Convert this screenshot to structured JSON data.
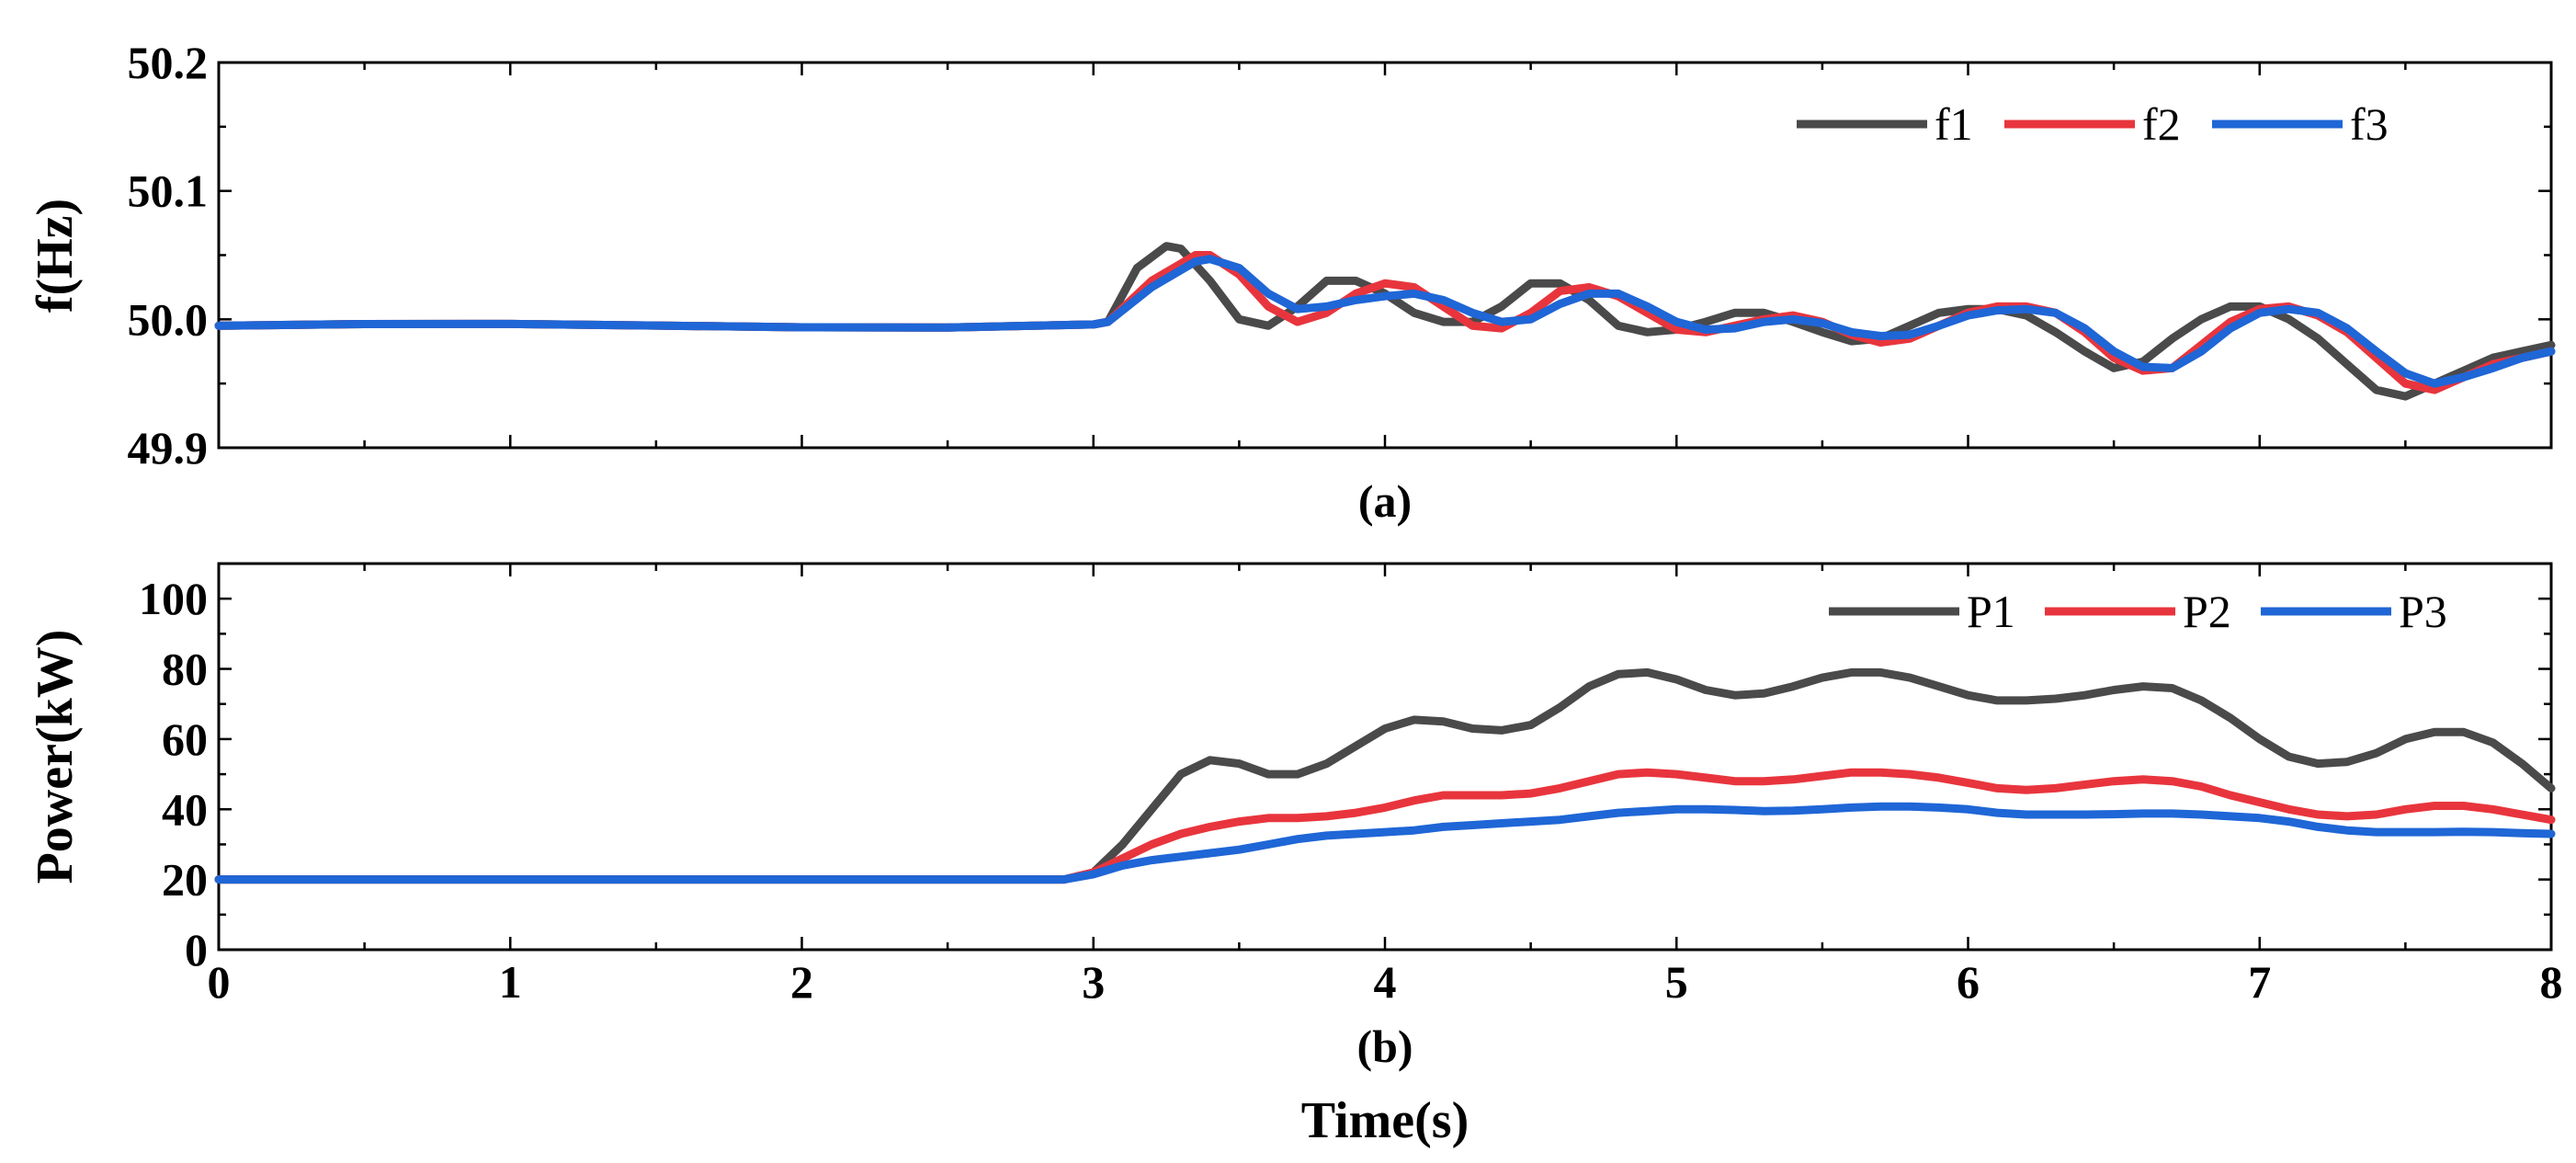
{
  "chart_data": [
    {
      "type": "line",
      "panel_label": "(a)",
      "title": "",
      "xlabel": "",
      "ylabel": "f(Hz)",
      "xlim": [
        0,
        8
      ],
      "ylim": [
        49.9,
        50.2
      ],
      "yticks": [
        "49.9",
        "50.0",
        "50.1",
        "50.2"
      ],
      "legend_position": "top-right",
      "series": [
        {
          "name": "f1",
          "color": "#4a4a4a",
          "x": [
            0,
            0.5,
            1,
            1.5,
            2,
            2.5,
            3,
            3.05,
            3.15,
            3.25,
            3.3,
            3.4,
            3.5,
            3.6,
            3.7,
            3.8,
            3.9,
            4.0,
            4.1,
            4.2,
            4.3,
            4.4,
            4.5,
            4.6,
            4.7,
            4.8,
            4.9,
            5.0,
            5.1,
            5.2,
            5.3,
            5.4,
            5.5,
            5.6,
            5.7,
            5.8,
            5.9,
            6.0,
            6.1,
            6.2,
            6.3,
            6.4,
            6.5,
            6.6,
            6.7,
            6.8,
            6.9,
            7.0,
            7.1,
            7.2,
            7.3,
            7.4,
            7.5,
            7.6,
            7.7,
            7.8,
            7.9,
            8.0
          ],
          "values": [
            49.995,
            49.995,
            49.995,
            49.995,
            49.995,
            49.995,
            49.996,
            49.998,
            50.04,
            50.057,
            50.055,
            50.03,
            50.0,
            49.995,
            50.01,
            50.03,
            50.03,
            50.02,
            50.005,
            49.998,
            49.998,
            50.01,
            50.028,
            50.028,
            50.015,
            49.995,
            49.99,
            49.992,
            49.998,
            50.005,
            50.005,
            49.998,
            49.99,
            49.983,
            49.985,
            49.995,
            50.005,
            50.008,
            50.008,
            50.003,
            49.99,
            49.975,
            49.962,
            49.967,
            49.985,
            50.0,
            50.01,
            50.01,
            50.0,
            49.985,
            49.965,
            49.945,
            49.94,
            49.95,
            49.96,
            49.97,
            49.975,
            49.98
          ]
        },
        {
          "name": "f2",
          "color": "#e8353d",
          "x": [
            0,
            0.5,
            1,
            1.5,
            2,
            2.5,
            3,
            3.05,
            3.2,
            3.35,
            3.4,
            3.5,
            3.6,
            3.7,
            3.8,
            3.9,
            4.0,
            4.1,
            4.2,
            4.3,
            4.4,
            4.5,
            4.6,
            4.7,
            4.8,
            4.9,
            5.0,
            5.1,
            5.2,
            5.3,
            5.4,
            5.5,
            5.6,
            5.7,
            5.8,
            5.9,
            6.0,
            6.1,
            6.2,
            6.3,
            6.4,
            6.5,
            6.6,
            6.7,
            6.8,
            6.9,
            7.0,
            7.1,
            7.2,
            7.3,
            7.4,
            7.5,
            7.6,
            7.7,
            7.8,
            7.9,
            8.0
          ],
          "values": [
            49.995,
            49.995,
            49.995,
            49.995,
            49.995,
            49.995,
            49.996,
            49.998,
            50.03,
            50.05,
            50.05,
            50.035,
            50.01,
            49.998,
            50.005,
            50.02,
            50.028,
            50.025,
            50.01,
            49.995,
            49.993,
            50.005,
            50.022,
            50.025,
            50.018,
            50.005,
            49.992,
            49.99,
            49.995,
            50.0,
            50.003,
            49.998,
            49.988,
            49.982,
            49.985,
            49.995,
            50.005,
            50.01,
            50.01,
            50.005,
            49.99,
            49.97,
            49.96,
            49.962,
            49.98,
            49.998,
            50.008,
            50.01,
            50.003,
            49.99,
            49.97,
            49.95,
            49.945,
            49.955,
            49.965,
            49.97,
            49.975
          ]
        },
        {
          "name": "f3",
          "color": "#1f66d6",
          "x": [
            0,
            0.5,
            1,
            1.5,
            2,
            2.5,
            3,
            3.05,
            3.2,
            3.35,
            3.4,
            3.5,
            3.6,
            3.7,
            3.8,
            3.9,
            4.0,
            4.1,
            4.2,
            4.3,
            4.4,
            4.5,
            4.6,
            4.7,
            4.8,
            4.9,
            5.0,
            5.1,
            5.2,
            5.3,
            5.4,
            5.5,
            5.6,
            5.7,
            5.8,
            5.9,
            6.0,
            6.1,
            6.2,
            6.3,
            6.4,
            6.5,
            6.6,
            6.7,
            6.8,
            6.9,
            7.0,
            7.1,
            7.2,
            7.3,
            7.4,
            7.5,
            7.6,
            7.7,
            7.8,
            7.9,
            8.0
          ],
          "values": [
            49.995,
            49.995,
            49.995,
            49.995,
            49.995,
            49.995,
            49.996,
            49.998,
            50.025,
            50.045,
            50.047,
            50.04,
            50.02,
            50.008,
            50.01,
            50.015,
            50.018,
            50.02,
            50.015,
            50.005,
            49.998,
            50.0,
            50.012,
            50.02,
            50.02,
            50.01,
            49.998,
            49.992,
            49.993,
            49.998,
            50.0,
            49.997,
            49.99,
            49.987,
            49.988,
            49.995,
            50.003,
            50.007,
            50.008,
            50.005,
            49.993,
            49.975,
            49.963,
            49.962,
            49.975,
            49.993,
            50.005,
            50.008,
            50.005,
            49.993,
            49.975,
            49.958,
            49.95,
            49.955,
            49.962,
            49.97,
            49.975
          ]
        }
      ]
    },
    {
      "type": "line",
      "panel_label": "(b)",
      "title": "",
      "xlabel": "Time(s)",
      "ylabel": "Power(kW)",
      "xlim": [
        0,
        8
      ],
      "ylim": [
        0,
        110
      ],
      "xticks": [
        "0",
        "1",
        "2",
        "3",
        "4",
        "5",
        "6",
        "7",
        "8"
      ],
      "yticks": [
        "0",
        "20",
        "40",
        "60",
        "80",
        "100"
      ],
      "legend_position": "top-right",
      "series": [
        {
          "name": "P1",
          "color": "#4a4a4a",
          "x": [
            0,
            0.5,
            1,
            1.5,
            2,
            2.5,
            2.9,
            3.0,
            3.1,
            3.2,
            3.3,
            3.4,
            3.5,
            3.6,
            3.7,
            3.8,
            3.9,
            4.0,
            4.1,
            4.2,
            4.3,
            4.4,
            4.5,
            4.6,
            4.7,
            4.8,
            4.9,
            5.0,
            5.1,
            5.2,
            5.3,
            5.4,
            5.5,
            5.6,
            5.7,
            5.8,
            5.9,
            6.0,
            6.1,
            6.2,
            6.3,
            6.4,
            6.5,
            6.6,
            6.7,
            6.8,
            6.9,
            7.0,
            7.1,
            7.2,
            7.3,
            7.4,
            7.5,
            7.6,
            7.7,
            7.8,
            7.9,
            8.0
          ],
          "values": [
            20,
            20,
            20,
            20,
            20,
            20,
            20,
            22,
            30,
            40,
            50,
            54,
            53,
            50,
            50,
            53,
            58,
            63,
            65.5,
            65,
            63,
            62.5,
            64,
            69,
            75,
            78.5,
            79,
            77,
            74,
            72.5,
            73,
            75,
            77.5,
            79,
            79,
            77.5,
            75,
            72.5,
            71,
            71,
            71.5,
            72.5,
            74,
            75,
            74.5,
            71,
            66,
            60,
            55,
            53,
            53.5,
            56,
            60,
            62,
            62,
            59,
            53,
            46
          ]
        },
        {
          "name": "P2",
          "color": "#e8353d",
          "x": [
            0,
            0.5,
            1,
            1.5,
            2,
            2.5,
            2.9,
            3.0,
            3.1,
            3.2,
            3.3,
            3.4,
            3.5,
            3.6,
            3.7,
            3.8,
            3.9,
            4.0,
            4.1,
            4.2,
            4.3,
            4.4,
            4.5,
            4.6,
            4.7,
            4.8,
            4.9,
            5.0,
            5.1,
            5.2,
            5.3,
            5.4,
            5.5,
            5.6,
            5.7,
            5.8,
            5.9,
            6.0,
            6.1,
            6.2,
            6.3,
            6.4,
            6.5,
            6.6,
            6.7,
            6.8,
            6.9,
            7.0,
            7.1,
            7.2,
            7.3,
            7.4,
            7.5,
            7.6,
            7.7,
            7.8,
            7.9,
            8.0
          ],
          "values": [
            20,
            20,
            20,
            20,
            20,
            20,
            20,
            22,
            26,
            30,
            33,
            35,
            36.5,
            37.5,
            37.5,
            38,
            39,
            40.5,
            42.5,
            44,
            44,
            44,
            44.5,
            46,
            48,
            50,
            50.5,
            50,
            49,
            48,
            48,
            48.5,
            49.5,
            50.5,
            50.5,
            50,
            49,
            47.5,
            46,
            45.5,
            46,
            47,
            48,
            48.5,
            48,
            46.5,
            44,
            42,
            40,
            38.5,
            38,
            38.5,
            40,
            41,
            41,
            40,
            38.5,
            37
          ]
        },
        {
          "name": "P3",
          "color": "#1f66d6",
          "x": [
            0,
            0.5,
            1,
            1.5,
            2,
            2.5,
            2.9,
            3.0,
            3.1,
            3.2,
            3.3,
            3.4,
            3.5,
            3.6,
            3.7,
            3.8,
            3.9,
            4.0,
            4.1,
            4.2,
            4.3,
            4.4,
            4.5,
            4.6,
            4.7,
            4.8,
            4.9,
            5.0,
            5.1,
            5.2,
            5.3,
            5.4,
            5.5,
            5.6,
            5.7,
            5.8,
            5.9,
            6.0,
            6.1,
            6.2,
            6.3,
            6.4,
            6.5,
            6.6,
            6.7,
            6.8,
            6.9,
            7.0,
            7.1,
            7.2,
            7.3,
            7.4,
            7.5,
            7.6,
            7.7,
            7.8,
            7.9,
            8.0
          ],
          "values": [
            20,
            20,
            20,
            20,
            20,
            20,
            20,
            21.5,
            24,
            25.5,
            26.5,
            27.5,
            28.5,
            30,
            31.5,
            32.5,
            33,
            33.5,
            34,
            35,
            35.5,
            36,
            36.5,
            37,
            38,
            39,
            39.5,
            40,
            40,
            39.8,
            39.5,
            39.6,
            40,
            40.5,
            40.8,
            40.8,
            40.5,
            40,
            39,
            38.5,
            38.5,
            38.5,
            38.6,
            38.8,
            38.8,
            38.5,
            38,
            37.5,
            36.5,
            35,
            34,
            33.5,
            33.5,
            33.5,
            33.6,
            33.5,
            33.2,
            33
          ]
        }
      ]
    }
  ]
}
